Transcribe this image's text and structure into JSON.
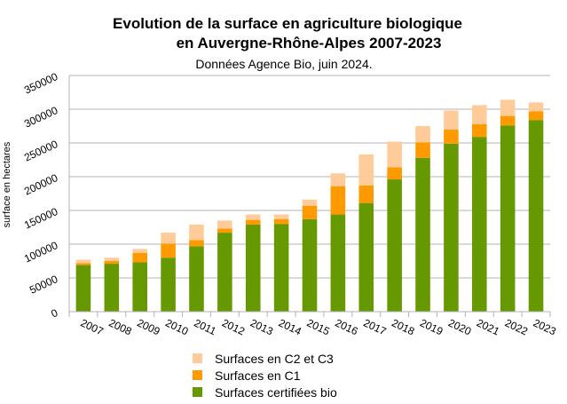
{
  "chart_data": {
    "type": "bar",
    "stacked": true,
    "title_line1": "Evolution de la surface en agriculture biologique",
    "title_line2": "en Auvergne-Rhône-Alpes 2007-2023",
    "subtitle": "Données Agence Bio, juin 2024.",
    "ylabel": "surface en hectares",
    "xlabel": "",
    "ylim": [
      0,
      350000
    ],
    "yticks": [
      0,
      50000,
      100000,
      150000,
      200000,
      250000,
      300000,
      350000
    ],
    "ytick_labels": [
      "0",
      "50000",
      "100000",
      "150000",
      "200000",
      "250000",
      "300000",
      "350000"
    ],
    "grid": "horizontal",
    "legend_position": "bottom",
    "categories": [
      "2007",
      "2008",
      "2009",
      "2010",
      "2011",
      "2012",
      "2013",
      "2014",
      "2015",
      "2016",
      "2017",
      "2018",
      "2019",
      "2020",
      "2021",
      "2022",
      "2023"
    ],
    "series": [
      {
        "name": "Surfaces certifiées bio",
        "color": "#669900",
        "values": [
          69000,
          71000,
          73000,
          80000,
          97000,
          117000,
          129000,
          130000,
          137000,
          144000,
          161000,
          196000,
          228000,
          249000,
          259000,
          276000,
          284000
        ]
      },
      {
        "name": "Surfaces en C1",
        "color": "#ff9900",
        "values": [
          3000,
          4000,
          14000,
          21000,
          9000,
          6000,
          7000,
          7000,
          20000,
          42000,
          26000,
          18000,
          23000,
          21000,
          19000,
          14000,
          13000
        ]
      },
      {
        "name": "Surfaces en C2 et C3",
        "color": "#ffcc99",
        "values": [
          5000,
          5000,
          6000,
          16000,
          23000,
          12000,
          8000,
          7000,
          9000,
          19000,
          46000,
          38000,
          24000,
          28000,
          28000,
          24000,
          13000
        ]
      }
    ]
  }
}
